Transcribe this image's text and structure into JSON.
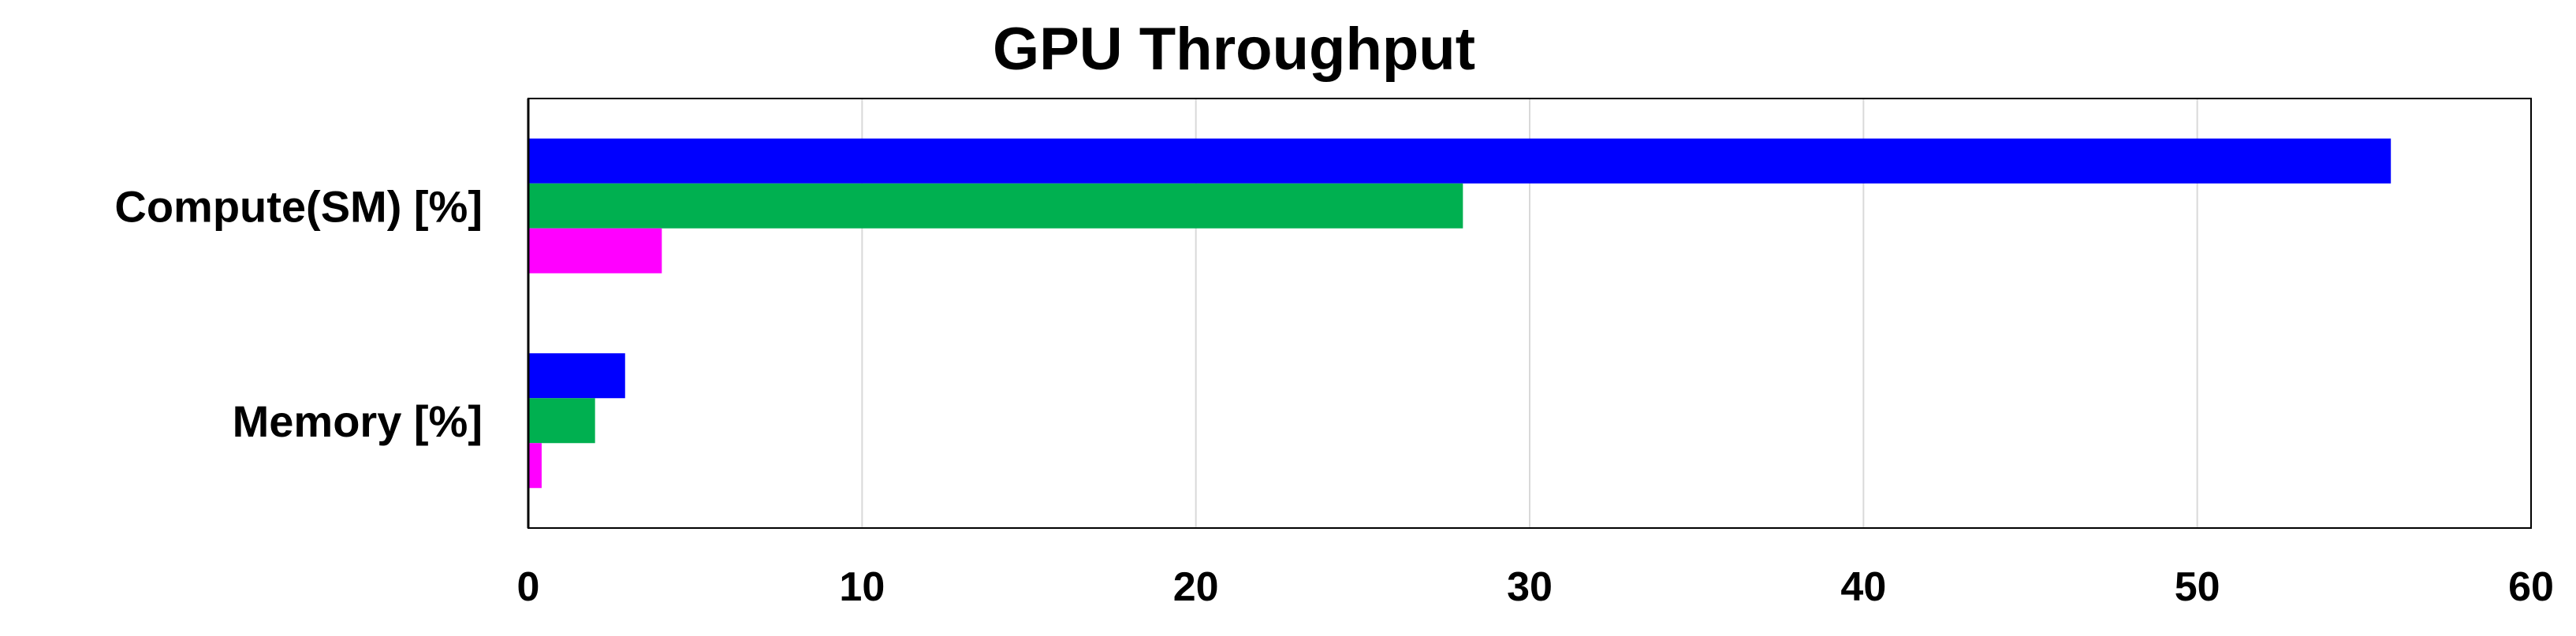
{
  "chart_data": {
    "type": "bar",
    "orientation": "horizontal",
    "title": "GPU Throughput",
    "xlabel": "",
    "ylabel": "",
    "categories": [
      "Compute(SM) [%]",
      "Memory [%]"
    ],
    "series": [
      {
        "values": [
          55.8,
          2.9
        ],
        "color": "#0000ff"
      },
      {
        "values": [
          28.0,
          2.0
        ],
        "color": "#00b050"
      },
      {
        "values": [
          4.0,
          0.4
        ],
        "color": "#ff00ff"
      }
    ],
    "xlim": [
      0,
      60
    ],
    "xticks": [
      0,
      10,
      20,
      30,
      40,
      50,
      60
    ],
    "grid": "vertical",
    "legend": "none"
  }
}
